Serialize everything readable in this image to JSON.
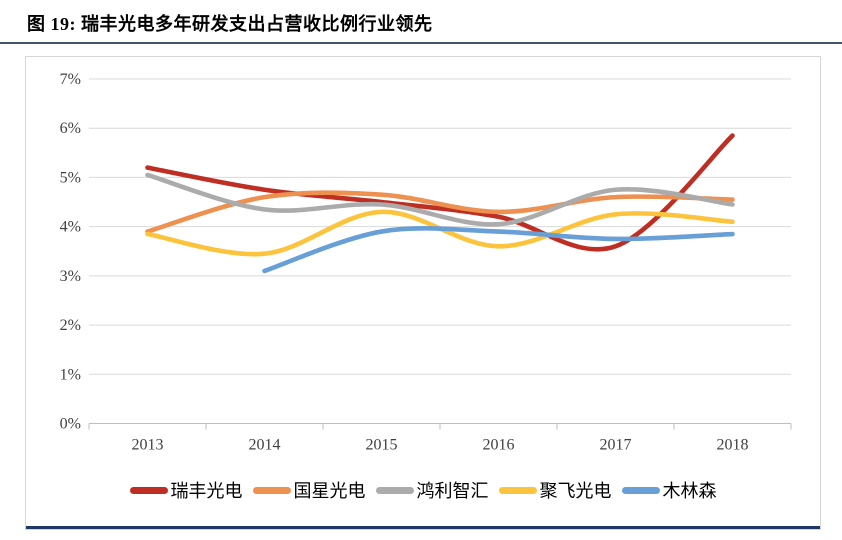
{
  "title": "图 19:  瑞丰光电多年研发支出占营收比例行业领先",
  "accent_colors": {
    "title_rule": "#44546A",
    "bottom_rule": "#203864",
    "gridline": "#D9D9D9",
    "axis_line": "#BFBFBF",
    "tick_text": "#404040"
  },
  "chart_data": {
    "type": "line",
    "title": "瑞丰光电多年研发支出占营收比例行业领先",
    "categories": [
      "2013",
      "2014",
      "2015",
      "2016",
      "2017",
      "2018"
    ],
    "series": [
      {
        "name": "瑞丰光电",
        "color": "#BE2E22",
        "values": [
          5.2,
          4.75,
          4.5,
          4.2,
          3.6,
          5.85
        ]
      },
      {
        "name": "国星光电",
        "color": "#ED9050",
        "values": [
          3.9,
          4.6,
          4.65,
          4.3,
          4.6,
          4.55
        ]
      },
      {
        "name": "鸿利智汇",
        "color": "#ABABAB",
        "values": [
          5.05,
          4.35,
          4.45,
          4.05,
          4.75,
          4.45
        ]
      },
      {
        "name": "聚飞光电",
        "color": "#FCC33C",
        "values": [
          3.85,
          3.45,
          4.3,
          3.6,
          4.25,
          4.1
        ]
      },
      {
        "name": "木林森",
        "color": "#679FD6",
        "values": [
          null,
          3.1,
          3.9,
          3.9,
          3.75,
          3.85
        ]
      }
    ],
    "y_ticks": [
      "0%",
      "1%",
      "2%",
      "3%",
      "4%",
      "5%",
      "6%",
      "7%"
    ],
    "ylim": [
      0,
      7
    ],
    "grid": true,
    "legend_position": "bottom",
    "line_style": "smooth"
  }
}
